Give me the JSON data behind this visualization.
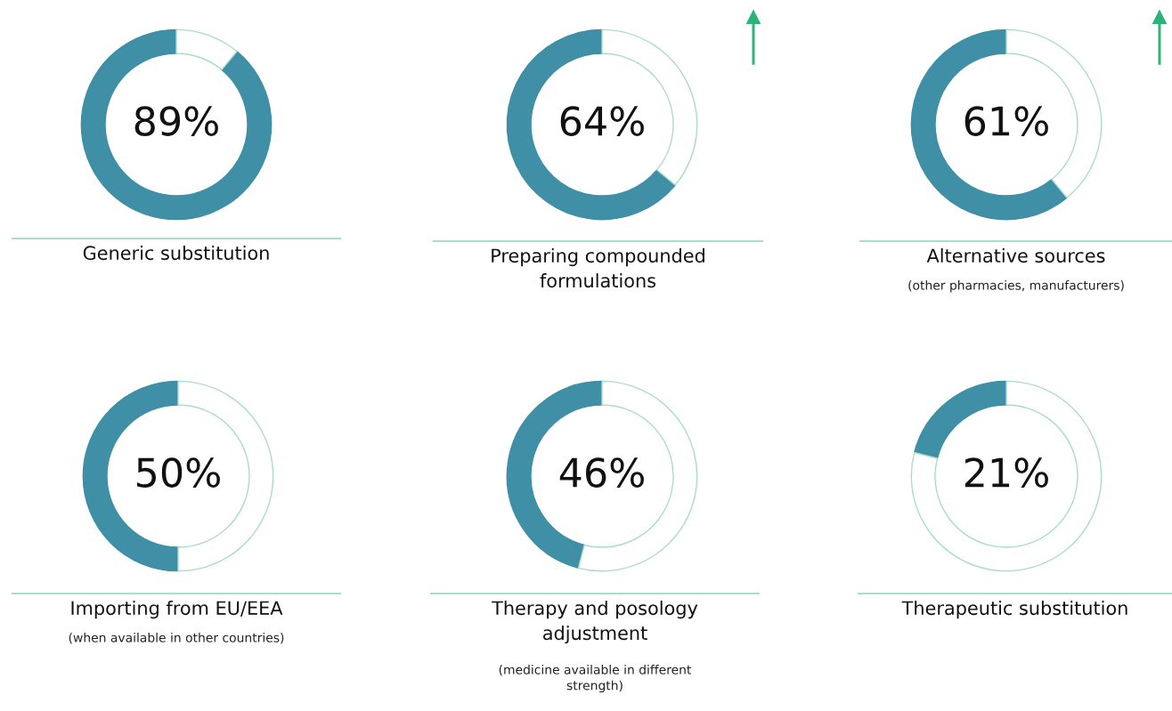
{
  "chart_data": [
    {
      "type": "donut",
      "title": "Generic substitution",
      "categories": [
        null,
        null
      ],
      "values": [
        89,
        11
      ],
      "colors": [
        "#3f8fa6",
        "#ffffff"
      ],
      "value_labels": [
        "89%",
        null
      ]
    },
    {
      "type": "donut",
      "title": "Preparing compounded\nformulations",
      "categories": [
        null,
        null
      ],
      "values": [
        64,
        36
      ],
      "colors": [
        "#3f8fa6",
        "#ffffff"
      ],
      "value_labels": [
        "64%",
        null
      ]
    },
    {
      "type": "donut",
      "title": "Alternative sources",
      "subtitle": "(other pharmacies, manufacturers)",
      "categories": [
        null,
        null
      ],
      "values": [
        61,
        39
      ],
      "colors": [
        "#3f8fa6",
        "#ffffff"
      ],
      "value_labels": [
        "61%",
        null
      ]
    },
    {
      "type": "donut",
      "title": "Importing from EU/EEA",
      "subtitle": "(when available in other countries)",
      "categories": [
        null,
        null
      ],
      "values": [
        50,
        50
      ],
      "colors": [
        "#3f8fa6",
        "#ffffff"
      ],
      "value_labels": [
        "50%",
        null
      ]
    },
    {
      "type": "donut",
      "title": "Therapy and posology\nadjustment",
      "subtitle": "(medicine available in different\nstrength)",
      "categories": [
        null,
        null
      ],
      "values": [
        46,
        54
      ],
      "colors": [
        "#3f8fa6",
        "#ffffff"
      ],
      "value_labels": [
        "46%",
        null
      ]
    },
    {
      "type": "donut",
      "title": "Therapeutic substitution",
      "categories": [
        null,
        null
      ],
      "values": [
        21,
        79
      ],
      "colors": [
        "#3f8fa6",
        "#ffffff"
      ],
      "value_labels": [
        "21%",
        null
      ]
    }
  ]
}
